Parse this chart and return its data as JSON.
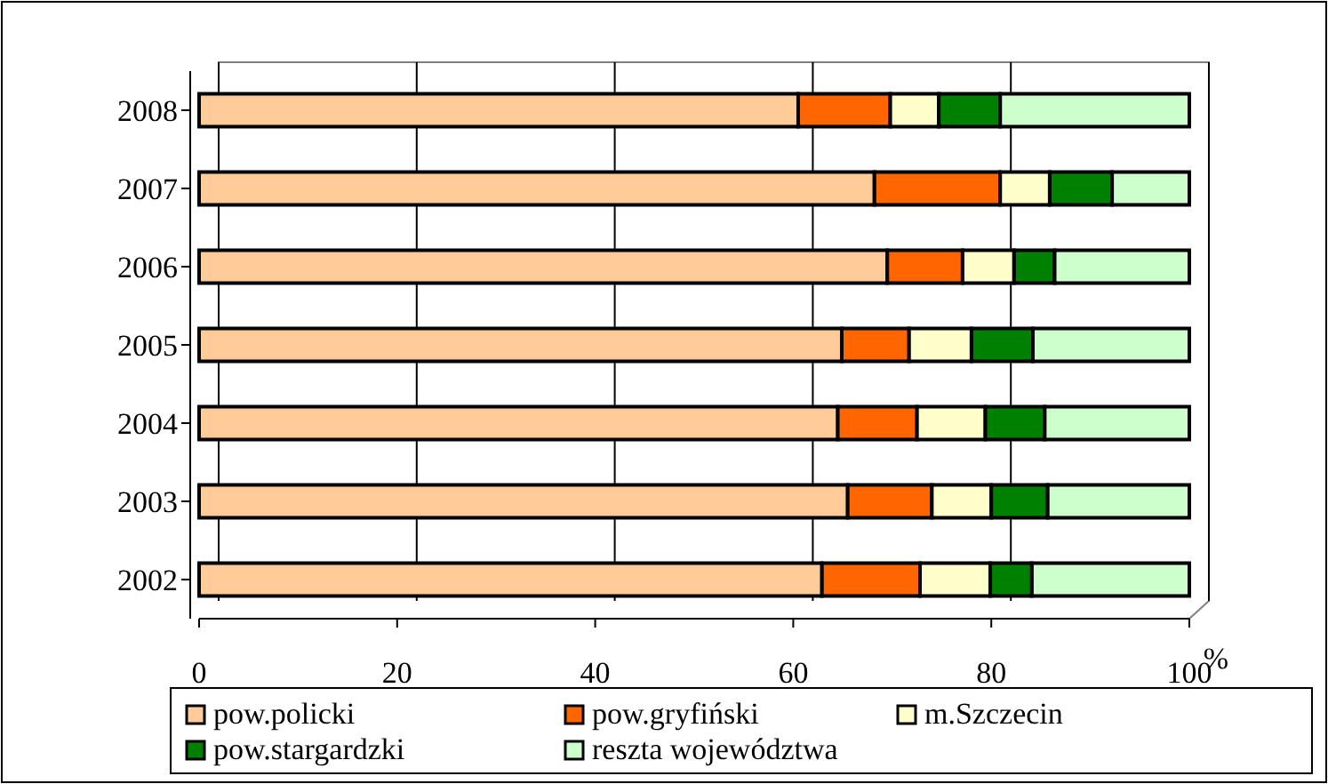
{
  "chart_data": {
    "type": "bar",
    "orientation": "horizontal",
    "stacked": true,
    "categories": [
      "2008",
      "2007",
      "2006",
      "2005",
      "2004",
      "2003",
      "2002"
    ],
    "series": [
      {
        "name": "pow.policki",
        "color": "#ffcc99",
        "values": [
          60.5,
          68.2,
          69.5,
          64.9,
          64.5,
          65.5,
          62.9
        ]
      },
      {
        "name": "pow.gryfiński",
        "color": "#ff6600",
        "values": [
          9.3,
          12.7,
          7.6,
          6.8,
          8.0,
          8.5,
          9.9
        ]
      },
      {
        "name": "m.Szczecin",
        "color": "#ffffcc",
        "values": [
          4.9,
          5.0,
          5.2,
          6.3,
          6.9,
          6.0,
          7.1
        ]
      },
      {
        "name": "pow.stargardzki",
        "color": "#008000",
        "values": [
          6.2,
          6.3,
          4.1,
          6.2,
          6.0,
          5.7,
          4.2
        ]
      },
      {
        "name": "reszta województwa",
        "color": "#ccffcc",
        "values": [
          19.1,
          7.8,
          13.6,
          15.8,
          14.6,
          14.3,
          15.9
        ]
      }
    ],
    "xlim": [
      0,
      100
    ],
    "xticks": [
      0,
      20,
      40,
      60,
      80,
      100
    ],
    "xlabel": "%",
    "grid": "x",
    "legend": "bottom"
  }
}
